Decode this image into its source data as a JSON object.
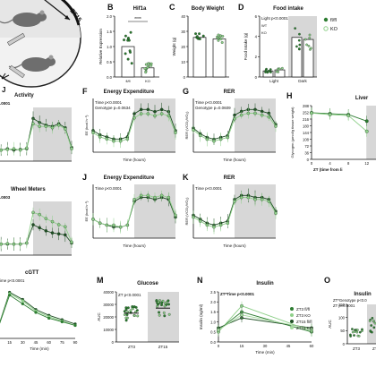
{
  "colors": {
    "wt": "#1f4f24",
    "ko": "#8fd08a",
    "wt_mid": "#2e7d32",
    "shade": "#d7d7d7",
    "axis": "#111111",
    "sig": "#111111"
  },
  "panels": [
    {
      "letter": "B",
      "title": "Hif1a"
    },
    {
      "letter": "C",
      "title": "Body Weight"
    },
    {
      "letter": "D",
      "title": "Food intake"
    },
    {
      "letter": "F",
      "title": "Energy Expenditure"
    },
    {
      "letter": "G",
      "title": "RER"
    },
    {
      "letter": "H",
      "title": "Liver"
    },
    {
      "letter": "J",
      "title": "Energy Expenditure"
    },
    {
      "letter": "K",
      "title": "RER"
    },
    {
      "letter": "M",
      "title": "Glucose"
    },
    {
      "letter": "N",
      "title": "Insulin"
    },
    {
      "letter": "O",
      "title": "Insulin"
    }
  ],
  "diagram": {
    "label_top": "ZT15",
    "label_left_letter": "J"
  },
  "chart_data": [
    {
      "id": "activity",
      "type": "line",
      "title": "Activity",
      "annotations": [
        ".0001"
      ],
      "xlabel": "",
      "ylabel": "",
      "x": [
        0,
        2,
        4,
        6,
        8,
        10,
        12,
        14,
        16,
        18,
        20,
        22,
        24
      ],
      "series": [
        {
          "values": [
            0.2,
            0.2,
            0.3,
            0.2,
            0.25,
            0.3,
            2.6,
            2.3,
            2.1,
            2.0,
            2.2,
            1.9,
            0.4
          ]
        },
        {
          "values": [
            0.25,
            0.2,
            0.25,
            0.3,
            0.2,
            0.35,
            2.2,
            2.0,
            2.0,
            1.9,
            2.1,
            1.8,
            0.3
          ]
        }
      ]
    },
    {
      "id": "hif1a",
      "type": "bar",
      "title": "Hif1a",
      "annotations": [
        "****"
      ],
      "xlabel": "",
      "ylabel": "Relative Expression",
      "ylim": [
        0,
        2.0
      ],
      "yticks": [
        "0.0",
        "0.5",
        "1.0",
        "1.5",
        "2.0"
      ],
      "categories": [
        "fl/fl",
        "KO"
      ],
      "values": [
        1.0,
        0.3
      ]
    },
    {
      "id": "body_weight",
      "type": "bar",
      "title": "Body Weight",
      "xlabel": "",
      "ylabel": "Weight (g)",
      "ylim": [
        0,
        40
      ],
      "yticks": [
        "0",
        "10",
        "20",
        "30",
        "40"
      ],
      "categories": [
        "fl/fl",
        "KO"
      ],
      "values": [
        26,
        25
      ]
    },
    {
      "id": "food_intake",
      "type": "bar",
      "title": "Food intake",
      "annotations": [
        "Light p<0.0001",
        "WT",
        "KO"
      ],
      "legend": [
        "fl/fl",
        "KO"
      ],
      "xlabel": "",
      "ylabel": "Food Intake (g)",
      "ylim": [
        0,
        6
      ],
      "yticks": [
        "0",
        "2",
        "4",
        "6"
      ],
      "categories": [
        "Light",
        "Dark"
      ],
      "series": [
        {
          "name": "fl/fl",
          "values": [
            0.6,
            3.9
          ]
        },
        {
          "name": "KO",
          "values": [
            0.7,
            3.7
          ]
        }
      ]
    },
    {
      "id": "ee1",
      "type": "line",
      "title": "Energy Expenditure",
      "annotations": [
        "Time p<0.0001",
        "Genotype p=0.0634"
      ],
      "xlabel": "Time (hours)",
      "ylabel": "EE (kcal h⁻¹)",
      "x": [
        0,
        2,
        4,
        6,
        8,
        10,
        12,
        14,
        16,
        18,
        20,
        22,
        24
      ],
      "series": [
        {
          "values": [
            0.4,
            0.38,
            0.37,
            0.36,
            0.36,
            0.37,
            0.48,
            0.5,
            0.5,
            0.49,
            0.5,
            0.49,
            0.4
          ]
        },
        {
          "values": [
            0.39,
            0.37,
            0.36,
            0.35,
            0.35,
            0.36,
            0.46,
            0.48,
            0.48,
            0.47,
            0.48,
            0.47,
            0.39
          ]
        }
      ]
    },
    {
      "id": "rer1",
      "type": "line",
      "title": "RER",
      "annotations": [
        "Time p<0.0001",
        "Genotype p=0.0609"
      ],
      "xlabel": "Time (hours)",
      "ylabel": "RER (VCO₂/VO₂)",
      "x": [
        0,
        2,
        4,
        6,
        8,
        10,
        12,
        14,
        16,
        18,
        20,
        22,
        24
      ],
      "series": [
        {
          "values": [
            0.88,
            0.85,
            0.83,
            0.82,
            0.83,
            0.84,
            0.95,
            0.97,
            0.98,
            0.98,
            0.97,
            0.96,
            0.9
          ]
        },
        {
          "values": [
            0.87,
            0.84,
            0.82,
            0.81,
            0.82,
            0.83,
            0.93,
            0.95,
            0.96,
            0.96,
            0.95,
            0.94,
            0.89
          ]
        }
      ]
    },
    {
      "id": "liver",
      "type": "line",
      "title": "Liver",
      "xlabel": "ZT (time from li",
      "ylabel": "Glycogen (µmol/g tissue weight)",
      "ylim": [
        0,
        288
      ],
      "yticks": [
        "0",
        "36",
        "72",
        "108",
        "144",
        "180",
        "216",
        "252",
        "288"
      ],
      "xticks": [
        "0",
        "4",
        "8",
        "12"
      ],
      "x": [
        0,
        4,
        8,
        12
      ],
      "series": [
        {
          "values": [
            250,
            245,
            240,
            205
          ]
        },
        {
          "values": [
            248,
            240,
            235,
            150
          ]
        }
      ]
    },
    {
      "id": "wheel",
      "type": "line",
      "title": "Wheel Meters",
      "annotations": [
        ".0003"
      ],
      "xlabel": "",
      "ylabel": "",
      "x": [
        0,
        2,
        4,
        6,
        8,
        10,
        12,
        14,
        16,
        18,
        20,
        22,
        24
      ],
      "series": [
        {
          "values": [
            0.1,
            0.1,
            0.1,
            0.1,
            0.1,
            0.2,
            2.0,
            1.7,
            1.4,
            1.2,
            1.1,
            1.0,
            0.2
          ]
        },
        {
          "values": [
            0.1,
            0.1,
            0.15,
            0.1,
            0.1,
            0.2,
            3.2,
            3.0,
            2.6,
            2.3,
            2.0,
            1.8,
            0.3
          ]
        }
      ]
    },
    {
      "id": "ee2",
      "type": "line",
      "title": "Energy Expenditure",
      "annotations": [
        "Time p<0.0001"
      ],
      "xlabel": "Time (hours)",
      "ylabel": "EE (kcal h⁻¹)",
      "x": [
        0,
        2,
        4,
        6,
        8,
        10,
        12,
        14,
        16,
        18,
        20,
        22,
        24
      ],
      "series": [
        {
          "values": [
            0.38,
            0.36,
            0.35,
            0.34,
            0.34,
            0.35,
            0.47,
            0.49,
            0.49,
            0.48,
            0.49,
            0.48,
            0.39
          ]
        },
        {
          "values": [
            0.38,
            0.36,
            0.35,
            0.35,
            0.34,
            0.35,
            0.48,
            0.5,
            0.5,
            0.49,
            0.5,
            0.49,
            0.4
          ]
        }
      ]
    },
    {
      "id": "rer2",
      "type": "line",
      "title": "RER",
      "annotations": [
        "Time p<0.0001"
      ],
      "xlabel": "Time (hours)",
      "ylabel": "RER (VCO₂/VO₂)",
      "x": [
        0,
        2,
        4,
        6,
        8,
        10,
        12,
        14,
        16,
        18,
        20,
        22,
        24
      ],
      "series": [
        {
          "values": [
            0.88,
            0.86,
            0.84,
            0.83,
            0.84,
            0.85,
            0.96,
            0.98,
            0.98,
            0.97,
            0.97,
            0.96,
            0.9
          ]
        },
        {
          "values": [
            0.87,
            0.85,
            0.83,
            0.82,
            0.83,
            0.84,
            0.95,
            0.97,
            0.97,
            0.96,
            0.96,
            0.95,
            0.89
          ]
        }
      ]
    },
    {
      "id": "gtt",
      "type": "line",
      "title": "GTT",
      "annotations": [
        "ime p<0.0001"
      ],
      "xlabel": "Time (min)",
      "ylabel": "",
      "xticks": [
        "15",
        "30",
        "45",
        "60",
        "75",
        "90"
      ],
      "x": [
        0,
        15,
        30,
        45,
        60,
        75,
        90
      ],
      "series": [
        {
          "values": [
            100,
            380,
            330,
            260,
            220,
            190,
            160
          ]
        },
        {
          "values": [
            100,
            370,
            320,
            250,
            210,
            180,
            150
          ]
        },
        {
          "values": [
            100,
            360,
            300,
            240,
            200,
            175,
            150
          ]
        }
      ]
    },
    {
      "id": "glucose_auc",
      "type": "bar",
      "title": "Glucose",
      "annotations": [
        "ZT p<0.0001"
      ],
      "xlabel": "",
      "ylabel": "AUC",
      "ylim": [
        0,
        40000
      ],
      "yticks": [
        "0",
        "10000",
        "20000",
        "30000",
        "40000"
      ],
      "categories": [
        "ZT3",
        "ZT15"
      ],
      "values": [
        23000,
        27000
      ]
    },
    {
      "id": "insulin",
      "type": "line",
      "title": "Insulin",
      "annotations": [
        "ZT*Time p<0.0001"
      ],
      "legend": [
        "ZT3 fl/fl",
        "ZT3 KO",
        "ZT15 fl/fl",
        "ZT15 KO"
      ],
      "xlabel": "Time (min)",
      "ylabel": "Insulin (ng/ml)",
      "ylim": [
        0,
        2.5
      ],
      "yticks": [
        "0.0",
        "0.5",
        "1.0",
        "1.5",
        "2.0",
        "2.5"
      ],
      "xticks": [
        "0",
        "15",
        "30",
        "45",
        "60"
      ],
      "x": [
        0,
        15,
        60
      ],
      "series": [
        {
          "name": "ZT3 fl/fl",
          "values": [
            0.6,
            1.5,
            0.5
          ]
        },
        {
          "name": "ZT3 KO",
          "values": [
            0.5,
            1.8,
            0.55
          ]
        },
        {
          "name": "ZT15 fl/fl",
          "values": [
            0.7,
            1.2,
            0.7
          ]
        },
        {
          "name": "ZT15 KO",
          "values": [
            0.6,
            1.35,
            0.65
          ]
        }
      ]
    },
    {
      "id": "insulin_auc",
      "type": "bar",
      "title": "Insulin",
      "annotations": [
        "ZT*Genotype p<0.0",
        "ZT p=0.0001"
      ],
      "xlabel": "",
      "ylabel": "AUC",
      "ylim": [
        0,
        150
      ],
      "yticks": [
        "0",
        "50",
        "100",
        "150"
      ],
      "categories": [
        "ZT3",
        "ZT1"
      ],
      "values": [
        45,
        70
      ]
    }
  ]
}
